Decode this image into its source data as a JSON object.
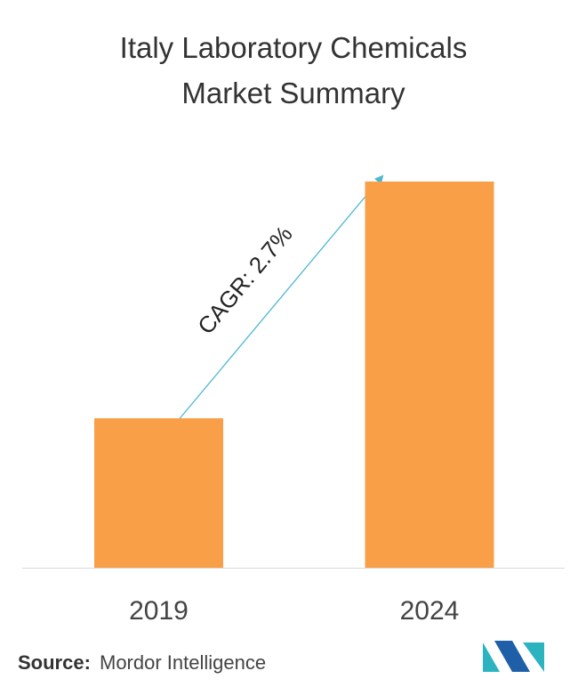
{
  "chart_data": {
    "type": "bar",
    "title": "Italy Laboratory Chemicals Market Summary",
    "categories": [
      "2019",
      "2024"
    ],
    "values": [
      38.7,
      100
    ],
    "color": "#f99f48",
    "annotation": "CAGR: 2.7%",
    "source_label": "Source:",
    "source": "Mordor Intelligence"
  }
}
